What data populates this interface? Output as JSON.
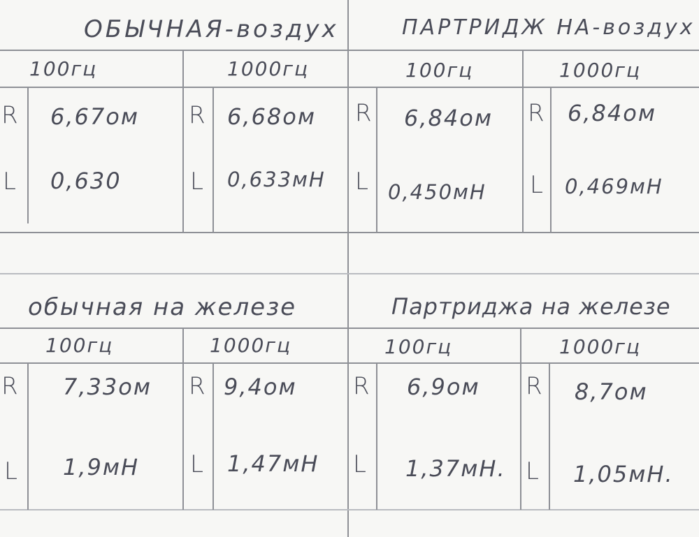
{
  "top": {
    "section_left": {
      "title": "ОБЫЧНАЯ-воздух",
      "f1": {
        "freq": "100гц",
        "R": "6,67ом",
        "L": "0,630"
      },
      "f2": {
        "freq": "1000гц",
        "R": "6,68ом",
        "L": "0,633мН"
      }
    },
    "section_right": {
      "title": "ПАРТРИДЖ НА-воздух",
      "f1": {
        "freq": "100гц",
        "R": "6,84ом",
        "L": "0,450мН"
      },
      "f2": {
        "freq": "1000гц",
        "R": "6,84ом",
        "L": "0,469мН"
      }
    }
  },
  "bottom": {
    "section_left": {
      "title": "обычная на железе",
      "f1": {
        "freq": "100гц",
        "R": "7,33ом",
        "L": "1,9мН"
      },
      "f2": {
        "freq": "1000гц",
        "R": "9,4ом",
        "L": "1,47мН"
      }
    },
    "section_right": {
      "title": "Партриджа на железе",
      "f1": {
        "freq": "100гц",
        "R": "6,9ом",
        "L": "1,37мН."
      },
      "f2": {
        "freq": "1000гц",
        "R": "8,7ом",
        "L": "1,05мН."
      }
    }
  },
  "labels": {
    "R": "R",
    "L": "L"
  }
}
